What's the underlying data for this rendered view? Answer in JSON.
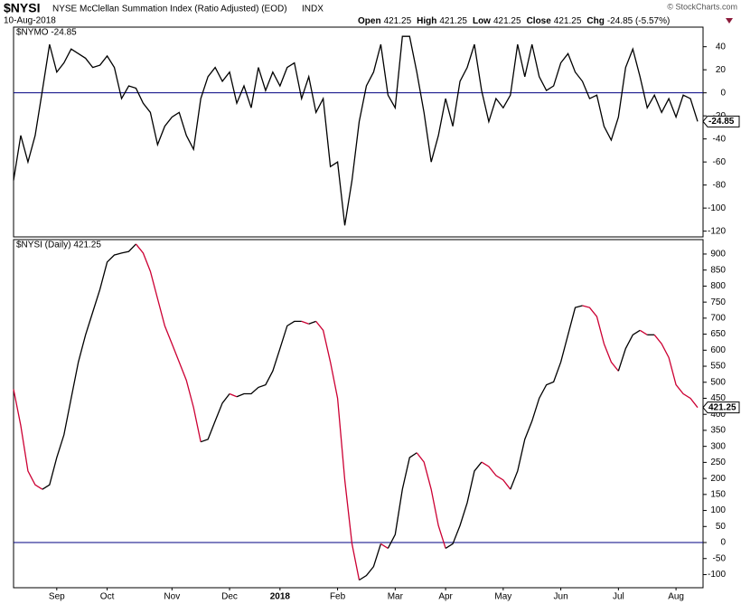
{
  "header": {
    "symbol": "$NYSI",
    "name": "NYSE McClellan Summation Index (Ratio Adjusted) (EOD)",
    "exchange": "INDX",
    "date": "10-Aug-2018",
    "copyright": "© StockCharts.com",
    "quote": [
      {
        "label": "Open",
        "value": "421.25"
      },
      {
        "label": "High",
        "value": "421.25"
      },
      {
        "label": "Low",
        "value": "421.25"
      },
      {
        "label": "Close",
        "value": "421.25"
      },
      {
        "label": "Chg",
        "value": "-24.85 (-5.57%)"
      }
    ]
  },
  "chart_data": [
    {
      "type": "line",
      "legend": "$NYMO -24.85",
      "color": "#000000",
      "hline": 0,
      "hline_color": "#000080",
      "ylim": [
        -125,
        57
      ],
      "yticks": [
        40,
        20,
        0,
        -20,
        -40,
        -60,
        -80,
        -100,
        -120
      ],
      "last_value": -24.85,
      "last_label": "-24.85",
      "values": [
        -76,
        -37,
        -60,
        -37,
        2,
        42,
        18,
        26,
        38,
        34,
        30,
        22,
        24,
        32,
        22,
        -5,
        6,
        4,
        -9,
        -17,
        -45,
        -29,
        -21,
        -17,
        -37,
        -49,
        -5,
        14,
        22,
        10,
        18,
        -9,
        6,
        -13,
        22,
        2,
        18,
        6,
        22,
        26,
        -5,
        14,
        -17,
        -5,
        -64,
        -60,
        -115,
        -76,
        -25,
        6,
        18,
        42,
        -2,
        -13,
        49,
        49,
        18,
        -17,
        -60,
        -37,
        -5,
        -29,
        10,
        22,
        42,
        2,
        -25,
        -5,
        -13,
        -2,
        42,
        14,
        42,
        14,
        2,
        6,
        26,
        34,
        18,
        10,
        -5,
        -2,
        -29,
        -41,
        -21,
        22,
        38,
        14,
        -13,
        -2,
        -17,
        -5,
        -21,
        -2,
        -5,
        -24.85
      ]
    },
    {
      "type": "updown-line",
      "legend": "$NYSI (Daily) 421.25",
      "up_color": "#000000",
      "down_color": "#cc0033",
      "hline": 0,
      "hline_color": "#000080",
      "ylim": [
        -141,
        945
      ],
      "yticks": [
        900,
        850,
        800,
        750,
        700,
        650,
        600,
        550,
        500,
        450,
        400,
        350,
        300,
        250,
        200,
        150,
        100,
        50,
        0,
        -50,
        -100
      ],
      "last_value": 421.25,
      "last_label": "421.25",
      "categories": [
        null,
        null,
        null,
        null,
        null,
        null,
        "Sep",
        null,
        null,
        null,
        null,
        null,
        null,
        "Oct",
        null,
        null,
        null,
        null,
        null,
        null,
        null,
        null,
        "Nov",
        null,
        null,
        null,
        null,
        null,
        null,
        null,
        "Dec",
        null,
        null,
        null,
        null,
        null,
        null,
        "2018",
        null,
        null,
        null,
        null,
        null,
        null,
        null,
        "Feb",
        null,
        null,
        null,
        null,
        null,
        null,
        null,
        "Mar",
        null,
        null,
        null,
        null,
        null,
        null,
        "Apr",
        null,
        null,
        null,
        null,
        null,
        null,
        null,
        "May",
        null,
        null,
        null,
        null,
        null,
        null,
        null,
        "Jun",
        null,
        null,
        null,
        null,
        null,
        null,
        null,
        "Jul",
        null,
        null,
        null,
        null,
        null,
        null,
        null,
        "Aug",
        null,
        null,
        null
      ],
      "values": [
        478,
        365,
        223,
        180,
        166,
        180,
        265,
        336,
        450,
        563,
        648,
        719,
        790,
        875,
        897,
        903,
        908,
        931,
        903,
        846,
        761,
        676,
        620,
        563,
        506,
        421,
        314,
        322,
        379,
        435,
        464,
        455,
        464,
        464,
        484,
        492,
        535,
        605,
        676,
        690,
        690,
        682,
        690,
        662,
        563,
        450,
        195,
        -4,
        -117,
        -103,
        -75,
        -4,
        -18,
        25,
        166,
        265,
        280,
        251,
        166,
        53,
        -18,
        -4,
        53,
        124,
        223,
        251,
        237,
        209,
        195,
        166,
        223,
        322,
        379,
        450,
        492,
        501,
        563,
        648,
        733,
        739,
        733,
        705,
        620,
        563,
        535,
        605,
        648,
        662,
        648,
        648,
        620,
        577,
        492,
        464,
        450,
        421.25
      ]
    }
  ]
}
